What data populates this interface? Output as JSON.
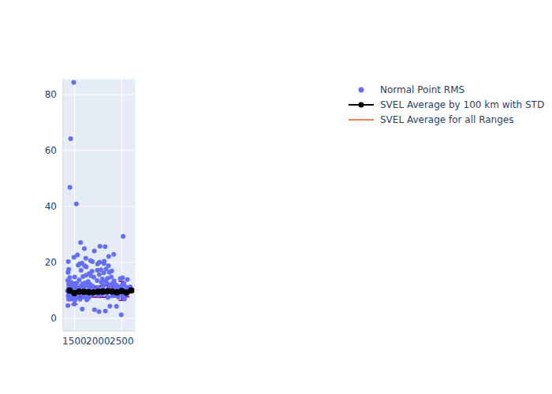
{
  "chart_data": {
    "type": "scatter",
    "xlim": [
      1260,
      2795
    ],
    "ylim": [
      -4.5,
      85.6
    ],
    "xticks": [
      1500,
      2000,
      2500
    ],
    "yticks": [
      0,
      20,
      40,
      60,
      80
    ],
    "grid": true,
    "legend": "top right",
    "series": [
      {
        "name": "Normal Point RMS",
        "type": "scatter",
        "color": "#636efa",
        "marker": "circle",
        "x": [
          1355,
          1360,
          1362,
          1365,
          1368,
          1370,
          1372,
          1375,
          1378,
          1380,
          1383,
          1386,
          1390,
          1395,
          1400,
          1403,
          1405,
          1410,
          1415,
          1420,
          1425,
          1430,
          1440,
          1450,
          1460,
          1470,
          1480,
          1485,
          1490,
          1495,
          1500,
          1505,
          1510,
          1520,
          1530,
          1540,
          1550,
          1560,
          1565,
          1570,
          1580,
          1590,
          1600,
          1610,
          1620,
          1630,
          1635,
          1640,
          1650,
          1660,
          1665,
          1670,
          1680,
          1690,
          1700,
          1710,
          1715,
          1720,
          1730,
          1740,
          1745,
          1750,
          1760,
          1770,
          1780,
          1790,
          1800,
          1810,
          1820,
          1830,
          1840,
          1850,
          1860,
          1870,
          1880,
          1890,
          1900,
          1910,
          1920,
          1925,
          1930,
          1980,
          1985,
          1990,
          2000,
          2010,
          2020,
          2025,
          2030,
          2040,
          2050,
          2060,
          2070,
          2080,
          2090,
          2100,
          2110,
          2120,
          2125,
          2130,
          2140,
          2150,
          2155,
          2160,
          2170,
          2180,
          2190,
          2200,
          2210,
          2220,
          2225,
          2230,
          2240,
          2250,
          2260,
          2270,
          2280,
          2290,
          2300,
          2310,
          2320,
          2330,
          2340,
          2350,
          2360,
          2370,
          2380,
          2390,
          2400,
          2410,
          2420,
          2430,
          2440,
          2470,
          2480,
          2490,
          2500,
          2510,
          2520,
          2530,
          2540,
          2550,
          2560,
          2580,
          2600,
          2610,
          2620,
          2640,
          2660,
          2680,
          2700
        ],
        "values": [
          9.8,
          13.5,
          4.6,
          16.4,
          8.2,
          20.3,
          10.5,
          7.4,
          12.1,
          17.5,
          9.1,
          6.8,
          11.2,
          8.7,
          14.6,
          46.8,
          7.9,
          10.3,
          12.8,
          64.2,
          9.4,
          6.9,
          11.6,
          8.3,
          10.8,
          7.2,
          12.4,
          84.3,
          21.8,
          5.1,
          9.6,
          14.8,
          6.4,
          11.1,
          8.9,
          40.9,
          12.6,
          7.5,
          22.7,
          10.2,
          19.0,
          9.3,
          13.7,
          19.5,
          6.8,
          27.1,
          11.4,
          17.2,
          8.6,
          19.7,
          3.3,
          12.3,
          14.9,
          7.7,
          10.9,
          24.9,
          18.8,
          8.1,
          12.7,
          21.5,
          15.4,
          18.4,
          6.6,
          11.8,
          9.9,
          13.2,
          7.3,
          16.0,
          10.6,
          12.2,
          20.6,
          15.2,
          8.4,
          16.8,
          20.3,
          11.5,
          9.0,
          14.7,
          24.1,
          3.1,
          10.1,
          13.5,
          17.2,
          19.4,
          8.2,
          10.9,
          2.4,
          15.6,
          20.1,
          25.8,
          9.8,
          17.4,
          12.9,
          8.6,
          14.1,
          10.4,
          11.7,
          16.3,
          19.6,
          20.4,
          9.2,
          25.6,
          2.6,
          13.3,
          17.6,
          8.8,
          12.5,
          14.3,
          7.5,
          18.8,
          22.1,
          10.7,
          16.5,
          4.4,
          11.9,
          9.4,
          14.8,
          17.0,
          8.0,
          12.6,
          10.2,
          22.9,
          13.4,
          9.1,
          11.3,
          8.3,
          12.0,
          4.3,
          10.5,
          9.0,
          11.4,
          7.6,
          8.8,
          14.2,
          10.6,
          1.3,
          9.3,
          11.8,
          14.5,
          29.3,
          8.1,
          12.4,
          6.9,
          10.3,
          11.1,
          8.7,
          13.9,
          9.5,
          10.7,
          11.3,
          9.9
        ]
      },
      {
        "name": "SVEL Average by 100 km with STD",
        "type": "line",
        "color": "#000000",
        "marker": "circle",
        "x": [
          1400,
          1500,
          1600,
          1700,
          1800,
          1900,
          2000,
          2100,
          2200,
          2300,
          2400,
          2500,
          2600,
          2700
        ],
        "values": [
          9.9,
          9.0,
          9.6,
          9.5,
          9.4,
          9.3,
          9.5,
          9.6,
          9.7,
          9.6,
          9.3,
          9.8,
          9.2,
          10.0
        ],
        "std": [
          3.5,
          4.0,
          1.8,
          1.9,
          1.8,
          1.7,
          2.0,
          2.1,
          2.0,
          1.9,
          1.6,
          3.4,
          1.5,
          0.6
        ]
      },
      {
        "name": "SVEL Average for all Ranges",
        "type": "line",
        "color": "#ff7f50",
        "x": [
          1350,
          2700
        ],
        "values": [
          9.5,
          9.5
        ]
      }
    ]
  }
}
